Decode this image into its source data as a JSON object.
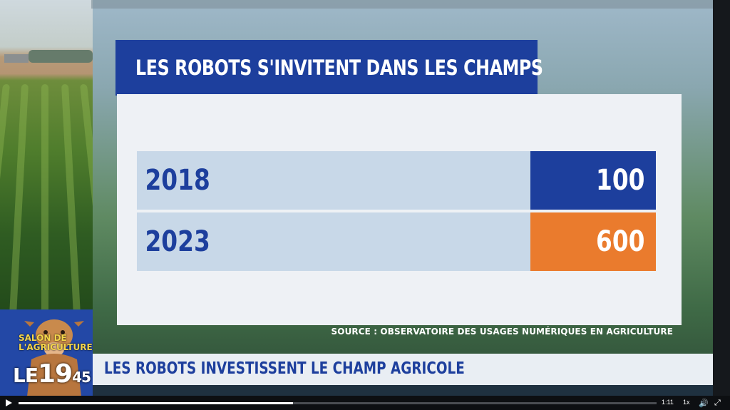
{
  "title": "LES ROBOTS S'INVITENT DANS LES CHAMPS",
  "rows": [
    {
      "year": "2018",
      "value": "100"
    },
    {
      "year": "2023",
      "value": "600"
    }
  ],
  "source": "SOURCE : OBSERVATOIRE DES USAGES NUMÉRIQUES EN AGRICULTURE",
  "lower_third": "LES ROBOTS INVESTISSENT LE CHAMP AGRICOLE",
  "logo": {
    "salon_line1": "SALON DE",
    "salon_line2": "L'AGRICULTURE",
    "le": "LE",
    "nineteen": "19",
    "fortyfive": "45"
  },
  "player": {
    "time": "1:11",
    "speed": "1x",
    "progress": 0.43,
    "play_icon": "play-icon",
    "volume_icon": "volume-icon",
    "fullscreen_icon": "fullscreen-icon"
  },
  "colors": {
    "brand_blue": "#1d3f9d",
    "highlight_orange": "#ea7b2d",
    "row_light": "#c8d8e8"
  }
}
